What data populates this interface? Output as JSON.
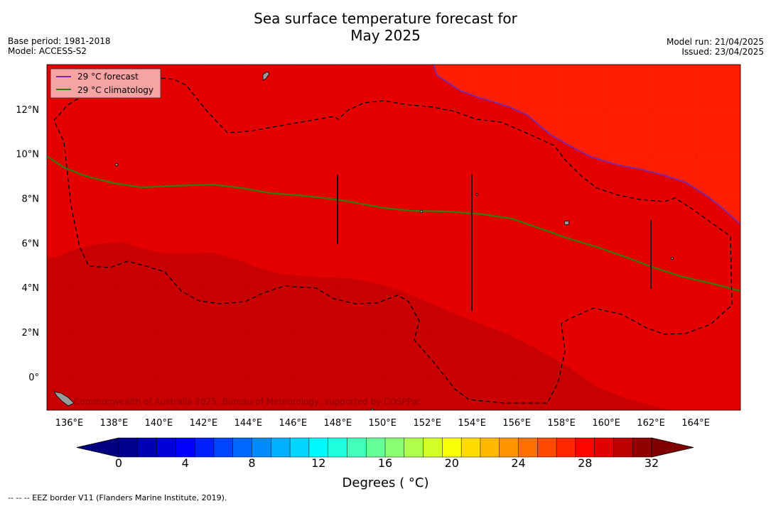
{
  "header": {
    "title_line1": "Sea surface temperature forecast for",
    "title_line2": "May 2025",
    "base_period": "Base period: 1981-2018",
    "model": "Model: ACCESS-S2",
    "model_run": "Model run: 21/04/2025",
    "issued": "Issued: 23/04/2025"
  },
  "map": {
    "lon_labels": [
      "136°E",
      "138°E",
      "140°E",
      "142°E",
      "144°E",
      "146°E",
      "148°E",
      "150°E",
      "152°E",
      "154°E",
      "156°E",
      "158°E",
      "160°E",
      "162°E",
      "164°E"
    ],
    "lat_labels": [
      "12°N",
      "10°N",
      "8°N",
      "6°N",
      "4°N",
      "2°N",
      "0°"
    ],
    "lon_range": [
      135,
      166
    ],
    "lat_range": [
      -1.5,
      14
    ],
    "legend": {
      "forecast_label": "29 °C  forecast",
      "climatology_label": "29 °C  climatology"
    },
    "watermark": "Commonwealth of Australia 2025, Bureau of Meteorology, supported by COSPPac",
    "colors": {
      "zone_29_30": "#e50000",
      "zone_30_31": "#c90000",
      "zone_28_29": "#ff1e00",
      "forecast_line": "#7a2aa8",
      "climatology_line": "#2e7d0e"
    }
  },
  "colorbar": {
    "tick_labels": [
      "0",
      "4",
      "8",
      "12",
      "16",
      "20",
      "24",
      "28",
      "32"
    ],
    "title": "Degrees ( °C)",
    "colors": [
      "#00008f",
      "#0000b3",
      "#0000d7",
      "#0000fb",
      "#0020ff",
      "#0044ff",
      "#0068ff",
      "#008cff",
      "#00b0ff",
      "#00d4ff",
      "#00f8ff",
      "#1fffdf",
      "#43ffbb",
      "#67ff97",
      "#8bff73",
      "#afff4f",
      "#d3ff2b",
      "#f7ff07",
      "#ffdb00",
      "#ffb700",
      "#ff9300",
      "#ff6f00",
      "#ff4b00",
      "#ff2700",
      "#ff0300",
      "#e00000",
      "#bc0000",
      "#8f0000"
    ]
  },
  "footnote": "--  --  -- EEZ border V11 (Flanders Marine Institute, 2019)."
}
